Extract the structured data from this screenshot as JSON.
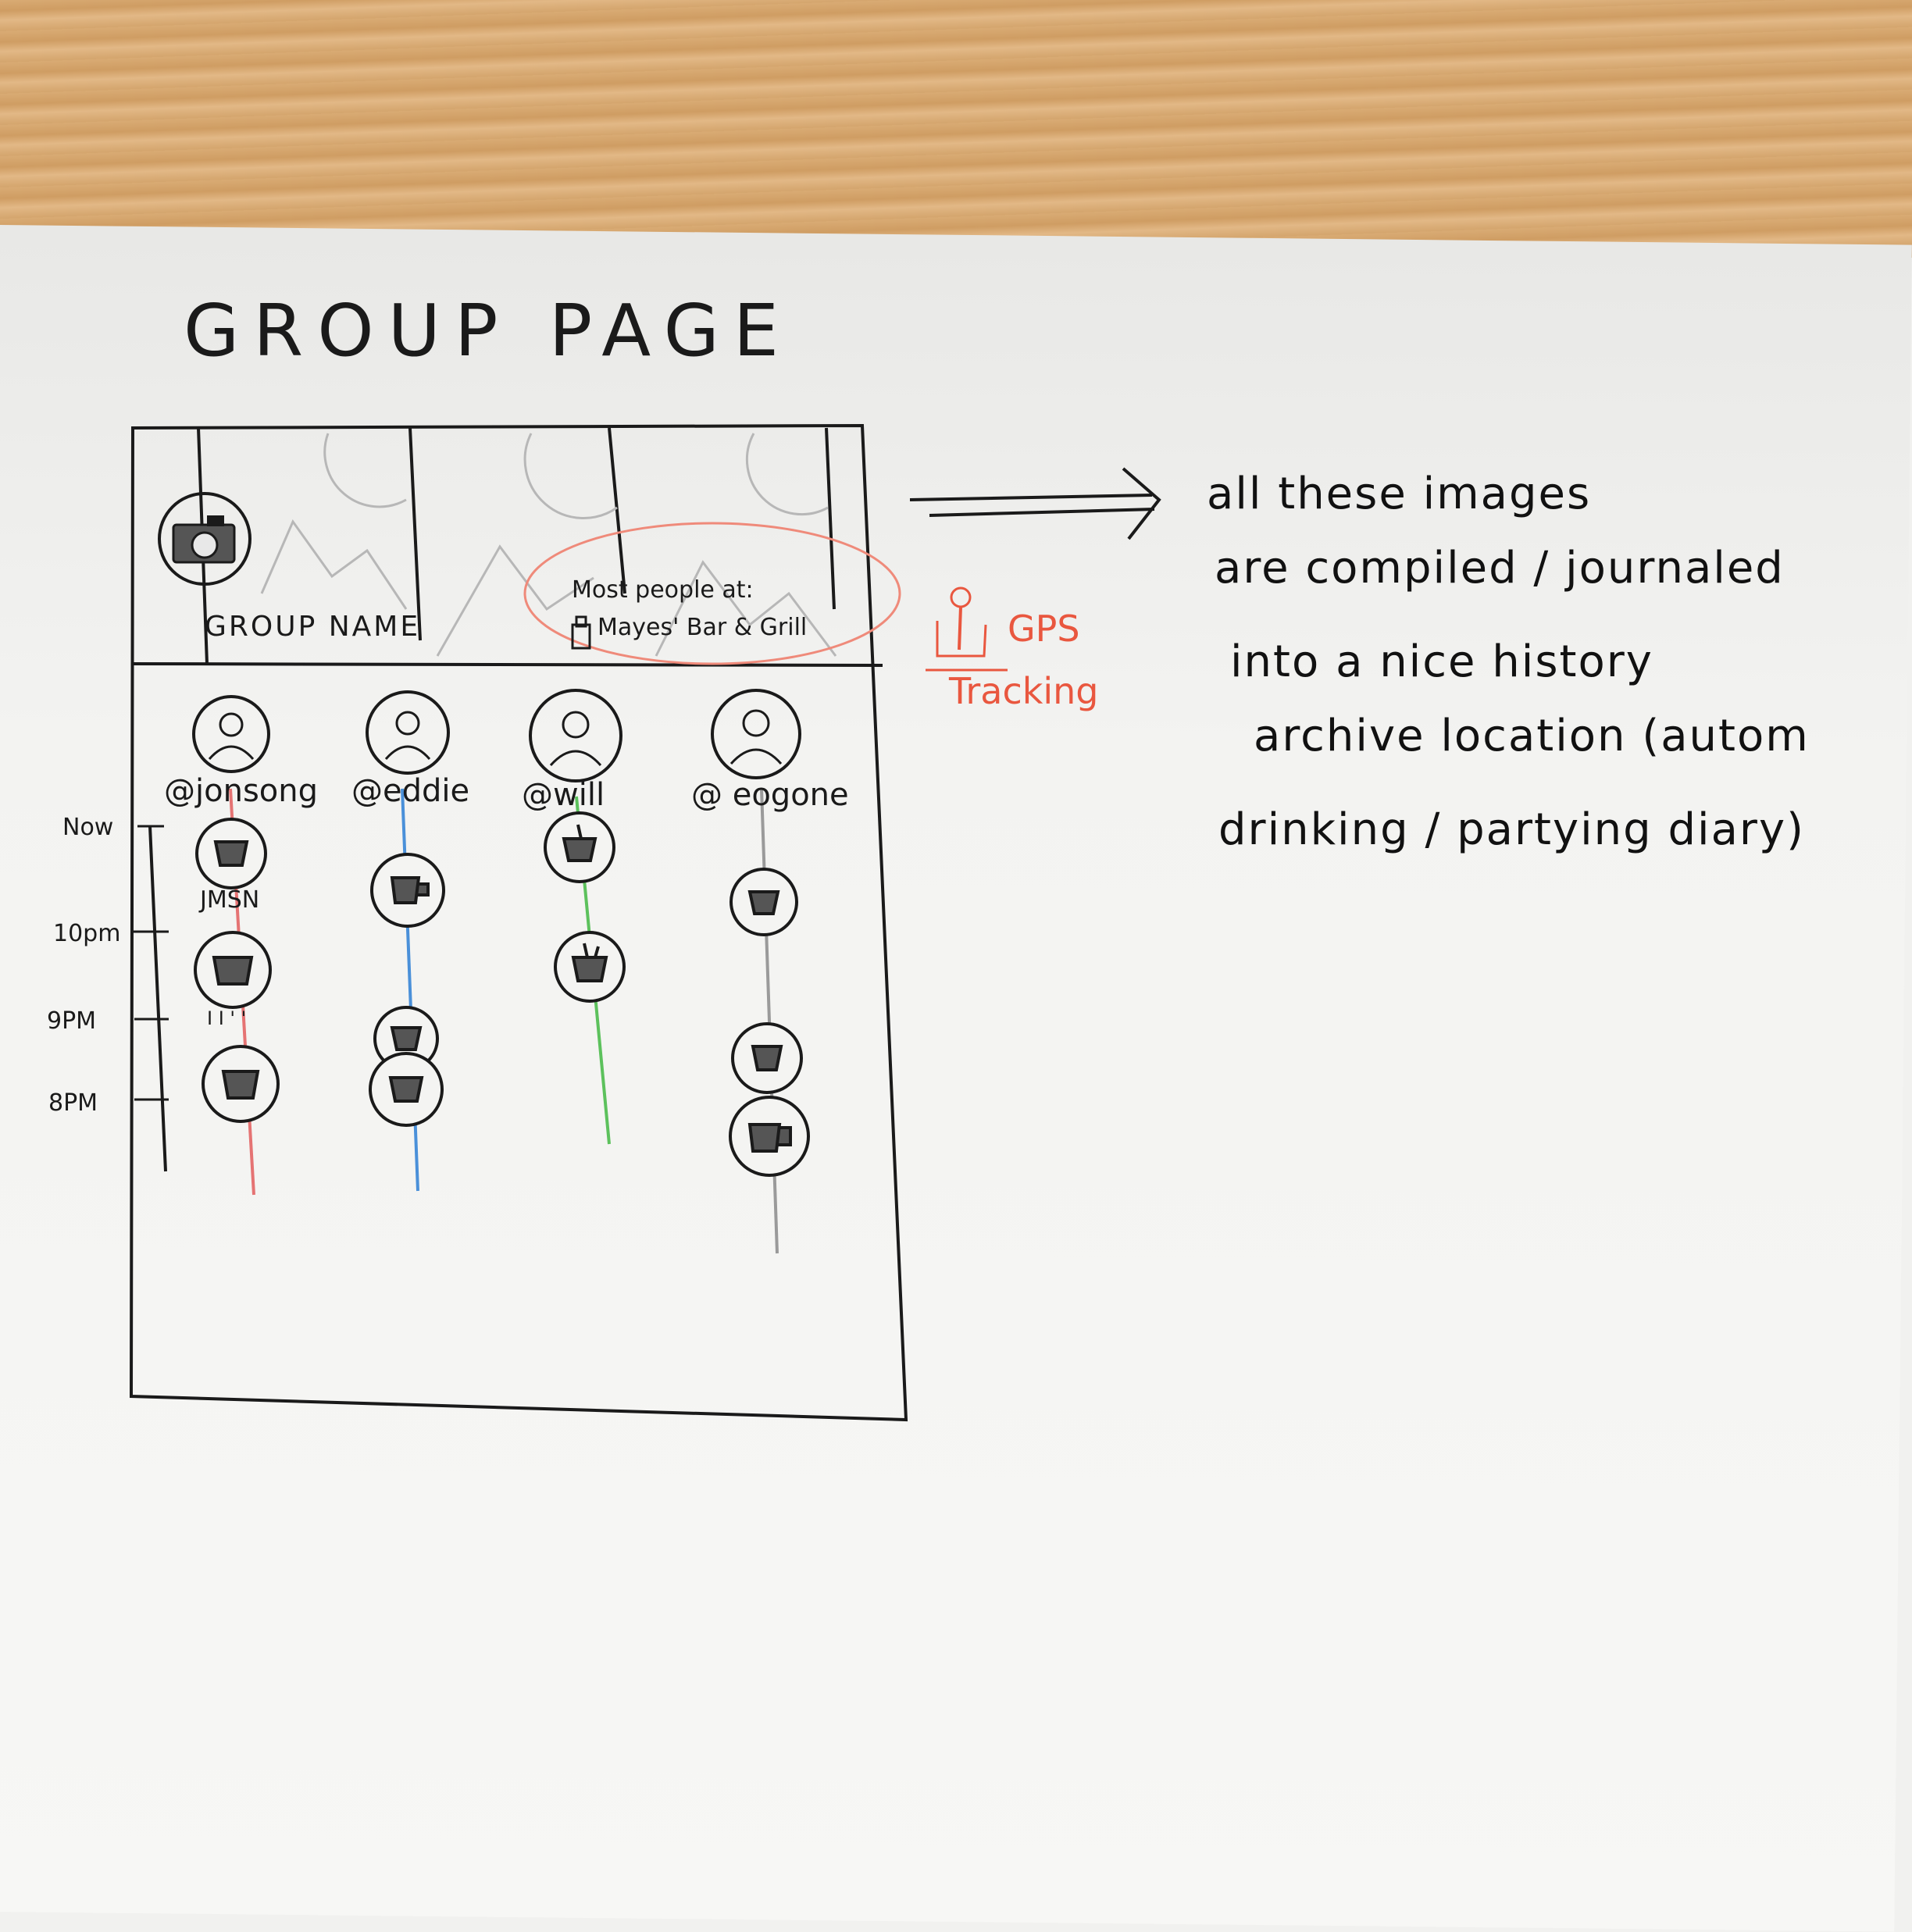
{
  "sketch": {
    "title": "GROUP PAGE",
    "header": {
      "group_name": "GROUP NAME",
      "most_people_label": "Most people at:",
      "venue": "Mayes' Bar & Grill"
    },
    "gps": {
      "line1": "GPS",
      "line2": "Tracking",
      "color": "#e9573f"
    },
    "users": [
      {
        "handle": "@jonsong",
        "line_color": "#e57373"
      },
      {
        "handle": "@eddie",
        "line_color": "#4a90d9"
      },
      {
        "handle": "@will",
        "line_color": "#5cc15c"
      },
      {
        "handle": "@ eogone",
        "line_color": "#9a9a9a"
      }
    ],
    "timeline": [
      "Now",
      "10pm",
      "9PM",
      "8PM"
    ],
    "checkin_label": "JMSN",
    "checkin_dots": "I I ' '",
    "notes": [
      "all  these  images",
      "are compiled / journaled",
      "into  a  nice  history",
      "archive  location  (autom",
      "drinking / partying   diary)"
    ]
  }
}
